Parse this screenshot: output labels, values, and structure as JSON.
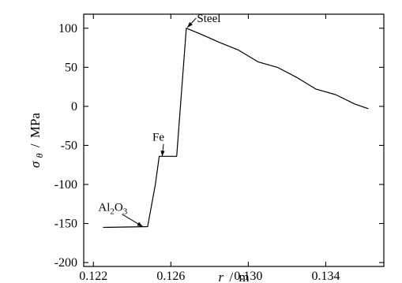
{
  "chart_data": {
    "type": "line",
    "xlabel": {
      "symbol": "r",
      "unit": "m"
    },
    "ylabel": {
      "symbol": "σ",
      "sub": "θ",
      "unit": "MPa"
    },
    "xlim": [
      0.1215,
      0.137
    ],
    "ylim": [
      -205,
      118
    ],
    "xticks": [
      {
        "value": 0.122,
        "label": "0.122"
      },
      {
        "value": 0.126,
        "label": "0.126"
      },
      {
        "value": 0.13,
        "label": "0.130"
      },
      {
        "value": 0.134,
        "label": "0.134"
      }
    ],
    "yticks": [
      {
        "value": 100,
        "label": "100"
      },
      {
        "value": 50,
        "label": "50"
      },
      {
        "value": 0,
        "label": "0"
      },
      {
        "value": -50,
        "label": "-50"
      },
      {
        "value": -100,
        "label": "-100"
      },
      {
        "value": -150,
        "label": "-150"
      },
      {
        "value": -200,
        "label": "-200"
      }
    ],
    "series": [
      {
        "x": [
          0.1225,
          0.1248,
          0.1252,
          0.1254,
          0.1257,
          0.1263,
          0.1268,
          0.1275,
          0.1285,
          0.1295,
          0.1305,
          0.1315,
          0.1325,
          0.1335,
          0.1345,
          0.1355,
          0.1362
        ],
        "y": [
          -155,
          -154,
          -100,
          -64,
          -64,
          -64,
          100,
          93,
          82,
          72,
          57,
          50,
          37,
          22,
          15,
          3,
          -3
        ]
      }
    ],
    "annotations": [
      {
        "text": "Steel",
        "label_x": 0.12735,
        "label_y": 108,
        "point_x": 0.12685,
        "point_y": 101
      },
      {
        "text": "Fe",
        "label_x": 0.12505,
        "label_y": -44,
        "point_x": 0.12555,
        "point_y": -64
      },
      {
        "text": "Al",
        "sub1": "2",
        "mid": "O",
        "sub2": "3",
        "label_x": 0.12225,
        "label_y": -134,
        "point_x": 0.12455,
        "point_y": -154
      }
    ]
  }
}
